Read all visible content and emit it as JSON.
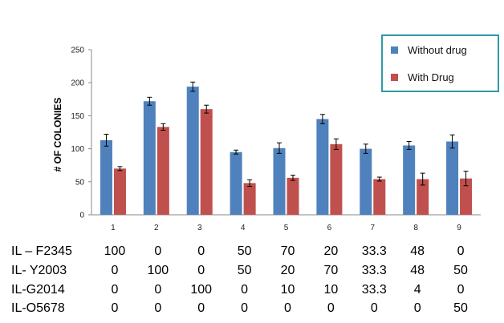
{
  "chart_data": {
    "type": "bar",
    "title": "",
    "xlabel": "",
    "ylabel": "# OF COLONIES",
    "ylim": [
      0,
      250
    ],
    "yticks": [
      0,
      50,
      100,
      150,
      200,
      250
    ],
    "categories": [
      "1",
      "2",
      "3",
      "4",
      "5",
      "6",
      "7",
      "8",
      "9"
    ],
    "series": [
      {
        "name": "Without drug",
        "color": "#4f81bd",
        "values": [
          113,
          172,
          194,
          95,
          101,
          145,
          100,
          105,
          111
        ],
        "errors": [
          9,
          6,
          7,
          3,
          8,
          7,
          7,
          6,
          10
        ]
      },
      {
        "name": "With Drug",
        "color": "#c0504d",
        "values": [
          70,
          133,
          160,
          48,
          56,
          107,
          54,
          54,
          55
        ],
        "errors": [
          3,
          5,
          6,
          5,
          4,
          8,
          3,
          9,
          11
        ]
      }
    ],
    "legend": {
      "position": "top-right",
      "border_color": "#2e9aa6"
    }
  },
  "composition_table": {
    "rows": [
      {
        "label": "IL – F2345",
        "values": [
          "100",
          "0",
          "0",
          "50",
          "70",
          "20",
          "33.3",
          "48",
          "0"
        ]
      },
      {
        "label": "IL- Y2003",
        "values": [
          "0",
          "100",
          "0",
          "50",
          "20",
          "70",
          "33.3",
          "48",
          "50"
        ]
      },
      {
        "label": "IL-G2014",
        "values": [
          "0",
          "0",
          "100",
          "0",
          "10",
          "10",
          "33.3",
          "4",
          "0"
        ]
      },
      {
        "label": "IL-O5678",
        "values": [
          "0",
          "0",
          "0",
          "0",
          "0",
          "0",
          "0",
          "0",
          "50"
        ]
      }
    ]
  }
}
